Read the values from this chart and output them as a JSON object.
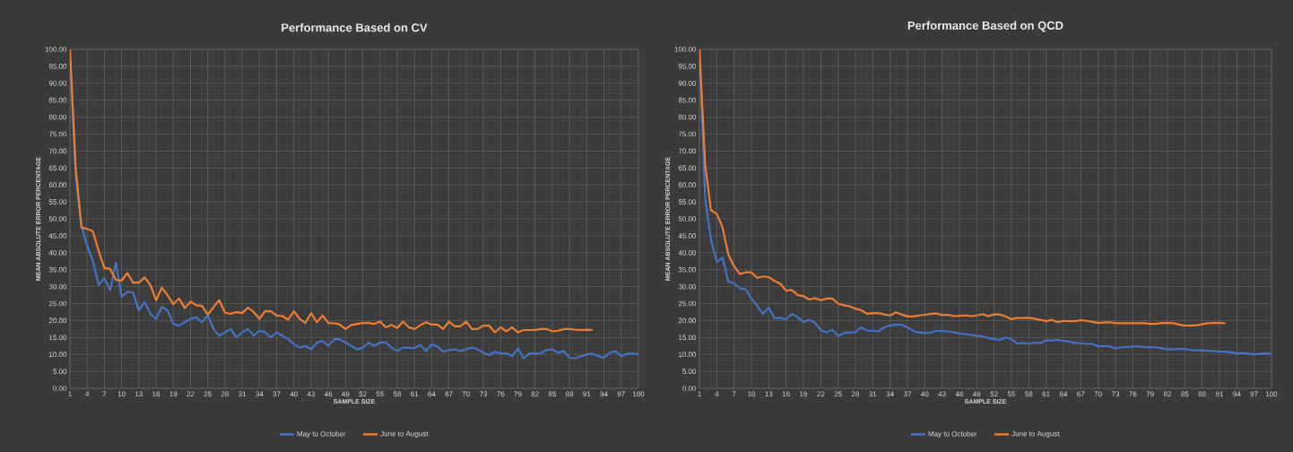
{
  "chart_data": [
    {
      "type": "line",
      "title": "Performance Based on CV",
      "xlabel": "SAMPLE SIZE",
      "ylabel": "MEAN ABSOLUTE ERROR PERCENTAGE",
      "categories": [
        "1",
        null,
        null,
        "4",
        null,
        null,
        "7",
        null,
        null,
        "10",
        null,
        null,
        "13",
        null,
        null,
        "16",
        null,
        null,
        "19",
        null,
        null,
        "22",
        null,
        null,
        "25",
        null,
        null,
        "28",
        null,
        null,
        "31",
        null,
        null,
        "34",
        null,
        null,
        "37",
        null,
        null,
        "40",
        null,
        null,
        "43",
        null,
        null,
        "46",
        null,
        null,
        "49",
        null,
        null,
        "52",
        null,
        null,
        "55",
        null,
        null,
        "58",
        null,
        null,
        "61",
        null,
        null,
        "64",
        null,
        null,
        "67",
        null,
        null,
        "70",
        null,
        null,
        "73",
        null,
        null,
        "76",
        null,
        null,
        "79",
        null,
        null,
        "82",
        null,
        null,
        "85",
        null,
        null,
        "88",
        null,
        null,
        "91",
        null,
        null,
        "94",
        null,
        null,
        "97",
        null,
        null,
        "100"
      ],
      "series": [
        {
          "name": "May to October",
          "color": "#4472c4",
          "values": [
            100,
            63,
            48,
            42,
            37.5,
            30.5,
            32.5,
            29,
            37,
            27,
            28.5,
            28.2,
            23,
            25.5,
            22,
            20.5,
            24,
            23,
            19,
            18.5,
            19.5,
            20.5,
            21,
            19.5,
            21.5,
            17.5,
            15.5,
            16.5,
            17.5,
            15,
            16.5,
            17.5,
            15.5,
            17,
            16.5,
            15,
            16.5,
            15.5,
            14.5,
            13,
            12,
            12.5,
            11.5,
            13.5,
            14,
            12.5,
            14.5,
            14.5,
            13.5,
            12.5,
            11.5,
            12,
            13.5,
            12.5,
            13.5,
            13.5,
            12,
            11,
            12,
            12,
            11.8,
            12.8,
            11,
            13,
            12.3,
            10.8,
            11.3,
            11.5,
            11,
            11.5,
            12,
            11.5,
            10.5,
            9.8,
            10.8,
            10.3,
            10.3,
            9.5,
            11.8,
            8.8,
            10.3,
            10.3,
            10.3,
            11.3,
            11.5,
            10.5,
            11,
            9,
            8.8,
            9.5,
            10,
            10.2,
            9.5,
            9,
            10.5,
            11,
            9.5,
            10.2,
            10.3,
            10
          ]
        },
        {
          "name": "June to August",
          "color": "#ed7d31",
          "values": [
            100,
            65,
            47.5,
            47,
            46.3,
            40.5,
            35.5,
            35.2,
            32,
            31.8,
            34,
            31.2,
            31.2,
            32.7,
            30.5,
            26,
            29.7,
            27.5,
            24.8,
            26.5,
            23.7,
            25.6,
            24.5,
            24.3,
            21.7,
            24,
            26,
            22.3,
            22,
            22.5,
            22.2,
            23.8,
            22.5,
            20.5,
            22.8,
            22.7,
            21.5,
            21.3,
            20.3,
            22.7,
            20.5,
            19.3,
            22.2,
            19.5,
            21.5,
            19.3,
            19.2,
            18.8,
            17.5,
            18.7,
            19,
            19.3,
            19.3,
            19,
            19.7,
            18,
            18.7,
            17.8,
            19.7,
            18,
            17.5,
            18.6,
            19.5,
            18.8,
            18.8,
            17.5,
            19.7,
            18.3,
            18.3,
            19.7,
            17.5,
            17.5,
            18.5,
            18.5,
            16.5,
            18,
            16.8,
            18,
            16.5,
            17.2,
            17.2,
            17.2,
            17.5,
            17.5,
            16.8,
            17,
            17.5,
            17.5,
            17.3,
            17.2,
            17.3,
            17.2,
            null,
            null,
            null,
            null,
            null,
            null,
            null,
            null
          ]
        }
      ],
      "ylim": [
        0,
        100
      ],
      "yticks": [
        {
          "value": 0,
          "label": "0.00"
        },
        {
          "value": 5,
          "label": "5.00"
        },
        {
          "value": 10,
          "label": "10.00"
        },
        {
          "value": 15,
          "label": "15.00"
        },
        {
          "value": 20,
          "label": "20.00"
        },
        {
          "value": 25,
          "label": "25.00"
        },
        {
          "value": 30,
          "label": "30.00"
        },
        {
          "value": 35,
          "label": "35.00"
        },
        {
          "value": 40,
          "label": "40.00"
        },
        {
          "value": 45,
          "label": "45.00"
        },
        {
          "value": 50,
          "label": "50.00"
        },
        {
          "value": 55,
          "label": "55.00"
        },
        {
          "value": 60,
          "label": "60.00"
        },
        {
          "value": 65,
          "label": "65.00"
        },
        {
          "value": 70,
          "label": "70.00"
        },
        {
          "value": 75,
          "label": "75.00"
        },
        {
          "value": 80,
          "label": "80.00"
        },
        {
          "value": 85,
          "label": "85.00"
        },
        {
          "value": 90,
          "label": "90.00"
        },
        {
          "value": 95,
          "label": "95.00"
        },
        {
          "value": 100,
          "label": "100.00"
        }
      ],
      "grid": true,
      "legend": "bottom"
    },
    {
      "type": "line",
      "title": "Performance Based on QCD",
      "xlabel": "SAMPLE SIZE",
      "ylabel": "MEAN ABSOLUTE ERROR PERCENTAGE",
      "categories": [
        "1",
        null,
        null,
        "4",
        null,
        null,
        "7",
        null,
        null,
        "10",
        null,
        null,
        "13",
        null,
        null,
        "16",
        null,
        null,
        "19",
        null,
        null,
        "22",
        null,
        null,
        "25",
        null,
        null,
        "28",
        null,
        null,
        "31",
        null,
        null,
        "34",
        null,
        null,
        "37",
        null,
        null,
        "40",
        null,
        null,
        "43",
        null,
        null,
        "46",
        null,
        null,
        "49",
        null,
        null,
        "52",
        null,
        null,
        "55",
        null,
        null,
        "58",
        null,
        null,
        "61",
        null,
        null,
        "64",
        null,
        null,
        "67",
        null,
        null,
        "70",
        null,
        null,
        "73",
        null,
        null,
        "76",
        null,
        null,
        "79",
        null,
        null,
        "82",
        null,
        null,
        "85",
        null,
        null,
        "88",
        null,
        null,
        "91",
        null,
        null,
        "94",
        null,
        null,
        "97",
        null,
        null,
        "100"
      ],
      "series": [
        {
          "name": "May to October",
          "color": "#4472c4",
          "values": [
            100,
            56,
            44,
            37.3,
            38.5,
            31.5,
            31,
            29.5,
            29.2,
            26.5,
            24.3,
            22,
            23.8,
            20.7,
            20.8,
            20.3,
            22,
            21,
            19.6,
            20.2,
            19.3,
            17.2,
            16.5,
            17.3,
            15.5,
            16.3,
            16.5,
            16.6,
            18,
            17,
            17,
            16.8,
            18,
            18.5,
            18.8,
            18.7,
            18,
            16.9,
            16.5,
            16.3,
            16.4,
            17,
            16.9,
            16.8,
            16.5,
            16.2,
            16,
            15.8,
            15.5,
            15.3,
            14.8,
            14.6,
            14.2,
            15,
            14.5,
            13.2,
            13.4,
            13.1,
            13.5,
            13.3,
            14.2,
            14.1,
            14.3,
            14,
            13.8,
            13.4,
            13.3,
            13.1,
            13.1,
            12.4,
            12.5,
            12.4,
            11.8,
            12.1,
            12.2,
            12.3,
            12.4,
            12.1,
            12.2,
            12.1,
            11.8,
            11.5,
            11.5,
            11.6,
            11.6,
            11.3,
            11.2,
            11.2,
            11.1,
            11,
            10.8,
            10.8,
            10.6,
            10.3,
            10.4,
            10.3,
            10,
            10.2,
            10.3,
            10.2
          ]
        },
        {
          "name": "June to August",
          "color": "#ed7d31",
          "values": [
            100,
            66,
            52.5,
            51.5,
            47.5,
            39.5,
            36,
            33.7,
            34.2,
            34.2,
            32.6,
            33,
            32.8,
            31.7,
            30.8,
            28.8,
            29,
            27.5,
            27.2,
            26.2,
            26.6,
            26,
            26.5,
            26.5,
            25,
            24.5,
            24.2,
            23.5,
            23,
            22,
            22.2,
            22.2,
            21.8,
            21.5,
            22.4,
            21.8,
            21.2,
            21.2,
            21.5,
            21.7,
            21.9,
            22.1,
            21.6,
            21.7,
            21.3,
            21.4,
            21.5,
            21.3,
            21.5,
            21.9,
            21.3,
            21.8,
            21.8,
            21.2,
            20.4,
            20.8,
            20.7,
            20.8,
            20.5,
            20.2,
            19.8,
            20.2,
            19.5,
            19.9,
            19.8,
            19.8,
            20.1,
            19.9,
            19.6,
            19.3,
            19.4,
            19.5,
            19.2,
            19.2,
            19.2,
            19.2,
            19.2,
            19.2,
            19,
            19,
            19.3,
            19.3,
            19.2,
            18.8,
            18.5,
            18.5,
            18.6,
            18.9,
            19.2,
            19.3,
            19.3,
            19.2,
            null,
            null,
            null,
            null,
            null,
            null,
            null,
            null
          ]
        }
      ],
      "ylim": [
        0,
        100
      ],
      "yticks": [
        {
          "value": 0,
          "label": "0.00"
        },
        {
          "value": 5,
          "label": "5.00"
        },
        {
          "value": 10,
          "label": "10.00"
        },
        {
          "value": 15,
          "label": "15.00"
        },
        {
          "value": 20,
          "label": "20.00"
        },
        {
          "value": 25,
          "label": "25.00"
        },
        {
          "value": 30,
          "label": "30.00"
        },
        {
          "value": 35,
          "label": "35.00"
        },
        {
          "value": 40,
          "label": "40.00"
        },
        {
          "value": 45,
          "label": "45.00"
        },
        {
          "value": 50,
          "label": "50.00"
        },
        {
          "value": 55,
          "label": "55.00"
        },
        {
          "value": 60,
          "label": "60.00"
        },
        {
          "value": 65,
          "label": "65.00"
        },
        {
          "value": 70,
          "label": "70.00"
        },
        {
          "value": 75,
          "label": "75.00"
        },
        {
          "value": 80,
          "label": "80.00"
        },
        {
          "value": 85,
          "label": "85.00"
        },
        {
          "value": 90,
          "label": "90.00"
        },
        {
          "value": 95,
          "label": "95.00"
        },
        {
          "value": 100,
          "label": "100.00"
        }
      ],
      "grid": true,
      "legend": "bottom"
    }
  ]
}
